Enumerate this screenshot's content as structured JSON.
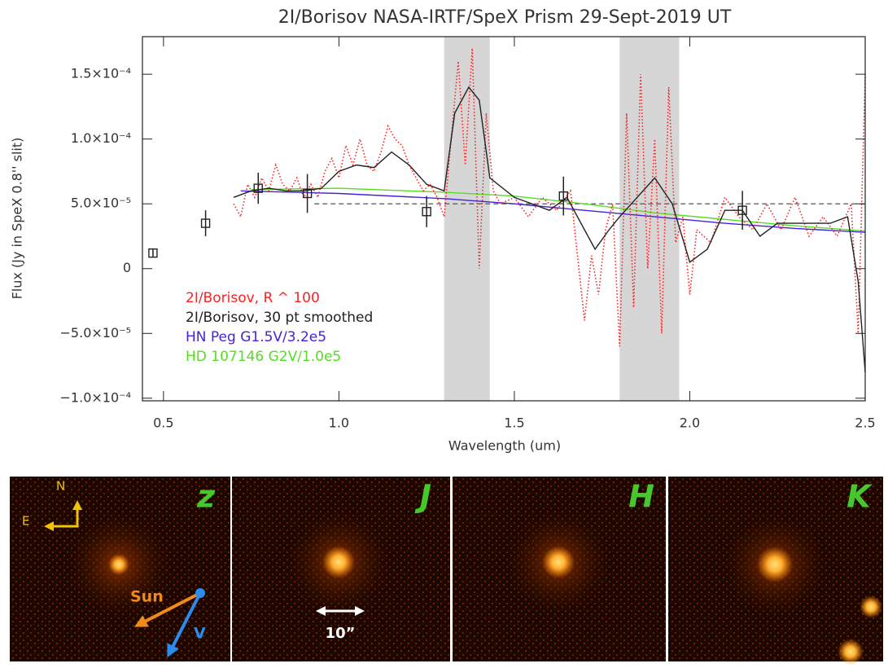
{
  "chart_data": {
    "type": "line",
    "title": "2I/Borisov NASA-IRTF/SpeX Prism   29-Sept-2019 UT",
    "xlabel": "Wavelength (um)",
    "ylabel": "Flux (Jy in SpeX 0.8'' slit)",
    "xlim": [
      0.44,
      2.5
    ],
    "ylim": [
      -0.000102,
      0.000179
    ],
    "xticks": [
      0.5,
      {
        "value": 1,
        "label": "1.0"
      },
      1.5,
      {
        "value": 2,
        "label": "2.0"
      },
      2.5
    ],
    "yticks": [
      {
        "value": -0.0001,
        "label": "−1.0×10⁻⁴"
      },
      {
        "value": -5e-05,
        "label": "−5.0×10⁻⁵"
      },
      0,
      {
        "value": 5e-05,
        "label": "5.0×10⁻⁵"
      },
      {
        "value": 0.0001,
        "label": "1.0×10⁻⁴"
      },
      {
        "value": 0.00015,
        "label": "1.5×10⁻⁴"
      }
    ],
    "shaded_regions": [
      [
        1.3,
        1.43
      ],
      [
        1.8,
        1.97
      ]
    ],
    "hline": 5e-05,
    "hline_x": [
      0.93,
      2.5
    ],
    "series": [
      {
        "name": "2I/Borisov, R ^ 100",
        "color": "#ff2020",
        "style": "dotted",
        "x": [
          0.7,
          0.72,
          0.74,
          0.76,
          0.78,
          0.8,
          0.82,
          0.84,
          0.86,
          0.88,
          0.9,
          0.92,
          0.94,
          0.96,
          0.98,
          1.0,
          1.02,
          1.04,
          1.06,
          1.08,
          1.1,
          1.12,
          1.14,
          1.16,
          1.18,
          1.2,
          1.22,
          1.24,
          1.26,
          1.28,
          1.3,
          1.32,
          1.34,
          1.36,
          1.38,
          1.4,
          1.42,
          1.44,
          1.46,
          1.5,
          1.54,
          1.58,
          1.62,
          1.66,
          1.7,
          1.72,
          1.74,
          1.76,
          1.78,
          1.8,
          1.82,
          1.84,
          1.86,
          1.88,
          1.9,
          1.92,
          1.94,
          1.96,
          1.98,
          2.0,
          2.02,
          2.06,
          2.1,
          2.14,
          2.18,
          2.22,
          2.26,
          2.3,
          2.34,
          2.38,
          2.42,
          2.46,
          2.48,
          2.5
        ],
        "values": [
          5e-05,
          4e-05,
          6.5e-05,
          5.5e-05,
          7e-05,
          6e-05,
          8e-05,
          6.5e-05,
          6e-05,
          7e-05,
          5.5e-05,
          6.5e-05,
          5.5e-05,
          7.5e-05,
          8.5e-05,
          7e-05,
          9.5e-05,
          8e-05,
          0.0001,
          8e-05,
          7.5e-05,
          9e-05,
          0.00011,
          0.0001,
          9.5e-05,
          8e-05,
          7e-05,
          6e-05,
          6.5e-05,
          5.5e-05,
          4e-05,
          0.0001,
          0.00016,
          8e-05,
          0.00017,
          0,
          0.00012,
          6e-05,
          5e-05,
          5.5e-05,
          4e-05,
          5.5e-05,
          4.5e-05,
          6e-05,
          -4e-05,
          1e-05,
          -2e-05,
          3e-05,
          5e-05,
          -6e-05,
          0.00012,
          -3e-05,
          0.00015,
          0,
          0.0001,
          -5e-05,
          0.00014,
          2e-05,
          4e-05,
          -2e-05,
          3e-05,
          2e-05,
          5.5e-05,
          4e-05,
          3e-05,
          5e-05,
          3e-05,
          5.5e-05,
          2.5e-05,
          4e-05,
          2.5e-05,
          5e-05,
          -5e-05,
          0.00015
        ]
      },
      {
        "name": "2I/Borisov, 30 pt smoothed",
        "color": "#222222",
        "style": "solid",
        "x": [
          0.7,
          0.75,
          0.8,
          0.85,
          0.9,
          0.95,
          1.0,
          1.05,
          1.1,
          1.15,
          1.2,
          1.25,
          1.3,
          1.33,
          1.37,
          1.4,
          1.43,
          1.5,
          1.55,
          1.6,
          1.65,
          1.7,
          1.73,
          1.77,
          1.8,
          1.85,
          1.9,
          1.95,
          2.0,
          2.05,
          2.1,
          2.15,
          2.2,
          2.25,
          2.3,
          2.4,
          2.45,
          2.48,
          2.5
        ],
        "values": [
          5.5e-05,
          6e-05,
          6.2e-05,
          6e-05,
          6e-05,
          6.2e-05,
          7.5e-05,
          8e-05,
          7.8e-05,
          9e-05,
          8e-05,
          6.5e-05,
          6e-05,
          0.00012,
          0.00014,
          0.00013,
          7e-05,
          5.5e-05,
          5e-05,
          4.5e-05,
          5.5e-05,
          3e-05,
          1.5e-05,
          3e-05,
          4e-05,
          5.5e-05,
          7e-05,
          5e-05,
          5e-06,
          1.5e-05,
          4.5e-05,
          4.5e-05,
          2.5e-05,
          3.5e-05,
          3.5e-05,
          3.5e-05,
          4e-05,
          -1e-05,
          -8e-05
        ]
      },
      {
        "name": "HN Peg G1.5V/3.2e5",
        "color": "#4422dd",
        "style": "solid",
        "x": [
          0.72,
          1.0,
          1.3,
          1.5,
          1.7,
          1.9,
          2.1,
          2.3,
          2.5
        ],
        "values": [
          6e-05,
          5.8e-05,
          5.4e-05,
          5e-05,
          4.5e-05,
          4e-05,
          3.5e-05,
          3.1e-05,
          2.8e-05
        ]
      },
      {
        "name": "HD 107146 G2V/1.0e5",
        "color": "#55dd22",
        "style": "solid",
        "x": [
          0.75,
          1.0,
          1.3,
          1.5,
          1.7,
          1.9,
          2.1,
          2.3,
          2.5
        ],
        "values": [
          6.1e-05,
          6.2e-05,
          5.9e-05,
          5.6e-05,
          5e-05,
          4.3e-05,
          3.8e-05,
          3.3e-05,
          2.9e-05
        ]
      }
    ],
    "photometry": {
      "color": "#222222",
      "x": [
        0.47,
        0.62,
        0.77,
        0.91,
        1.25,
        1.64,
        2.15
      ],
      "values": [
        1.2e-05,
        3.5e-05,
        6.2e-05,
        5.8e-05,
        4.4e-05,
        5.6e-05,
        4.5e-05
      ],
      "errors": [
        3e-06,
        1e-05,
        1.2e-05,
        1.5e-05,
        1.2e-05,
        1.5e-05,
        1.5e-05
      ]
    }
  },
  "panels": [
    {
      "label": "z",
      "north": "N",
      "east": "E",
      "sun": "Sun",
      "velocity": "V"
    },
    {
      "label": "J",
      "scale": "10”"
    },
    {
      "label": "H"
    },
    {
      "label": "K"
    }
  ]
}
